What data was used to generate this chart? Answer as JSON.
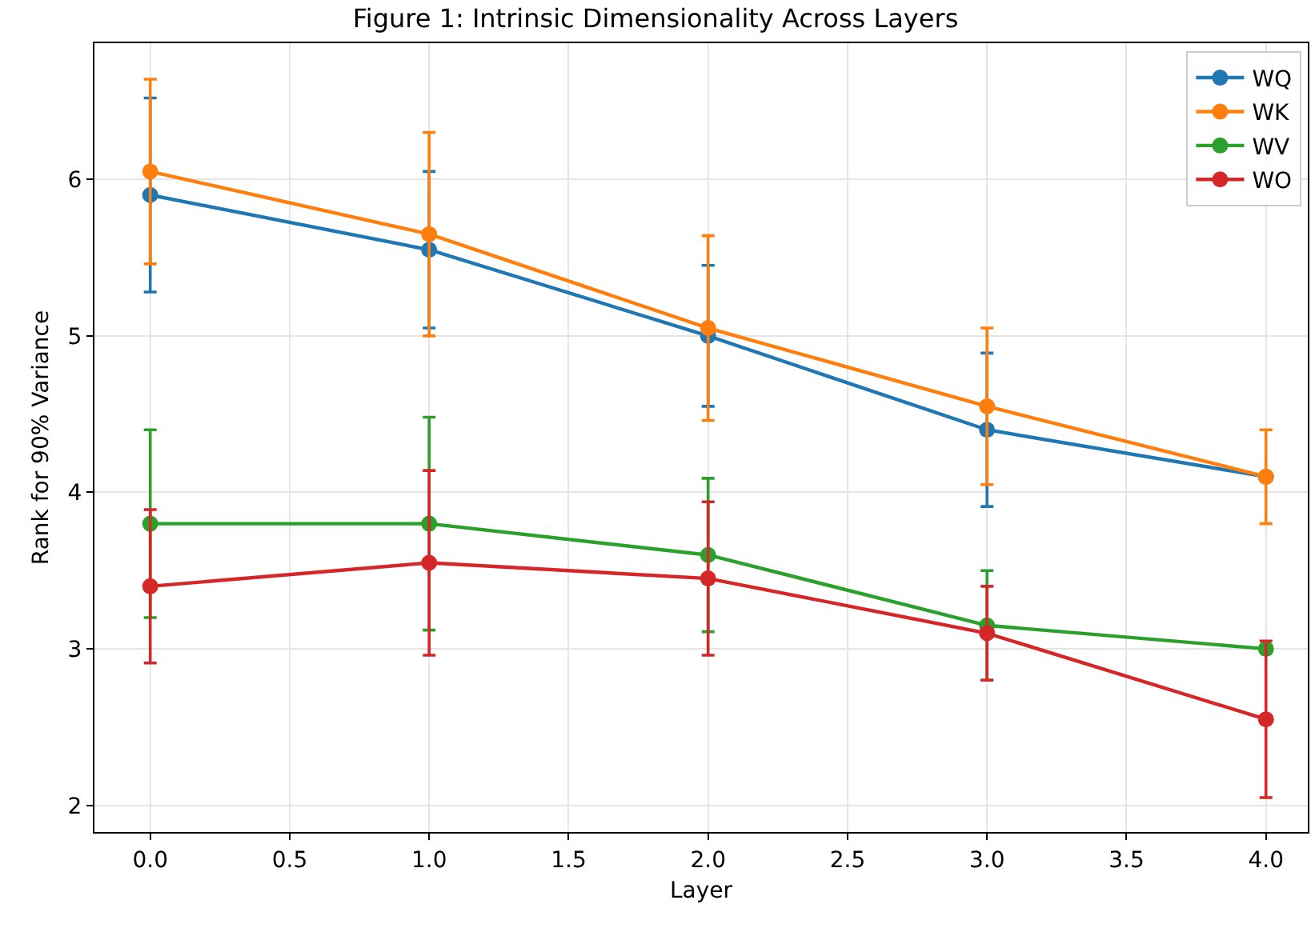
{
  "chart_data": {
    "type": "line",
    "title": "Figure 1: Intrinsic Dimensionality Across Layers",
    "xlabel": "Layer",
    "ylabel": "Rank for 90% Variance",
    "x": [
      0,
      1,
      2,
      3,
      4
    ],
    "series": [
      {
        "name": "WQ",
        "color": "#1f77b4",
        "values": [
          5.9,
          5.55,
          5.0,
          4.4,
          4.1
        ],
        "errors": [
          0.62,
          0.5,
          0.45,
          0.49,
          null
        ]
      },
      {
        "name": "WK",
        "color": "#ff7f0e",
        "values": [
          6.05,
          5.65,
          5.05,
          4.55,
          4.1
        ],
        "errors": [
          0.59,
          0.65,
          0.59,
          0.5,
          0.3
        ]
      },
      {
        "name": "WV",
        "color": "#2ca02c",
        "values": [
          3.8,
          3.8,
          3.6,
          3.15,
          3.0
        ],
        "errors": [
          0.6,
          0.68,
          0.49,
          0.35,
          null
        ]
      },
      {
        "name": "WO",
        "color": "#d62728",
        "values": [
          3.4,
          3.55,
          3.45,
          3.1,
          2.55
        ],
        "errors": [
          0.49,
          0.59,
          0.49,
          0.3,
          0.5
        ]
      }
    ],
    "xlim": [
      -0.2,
      4.15
    ],
    "xticks": [
      {
        "value": 0,
        "label": "0.0"
      },
      {
        "value": 0.5,
        "label": "0.5"
      },
      {
        "value": 1,
        "label": "1.0"
      },
      {
        "value": 1.5,
        "label": "1.5"
      },
      {
        "value": 2,
        "label": "2.0"
      },
      {
        "value": 2.5,
        "label": "2.5"
      },
      {
        "value": 3,
        "label": "3.0"
      },
      {
        "value": 3.5,
        "label": "3.5"
      },
      {
        "value": 4,
        "label": "4.0"
      }
    ],
    "ylim": [
      1.83,
      6.87
    ],
    "yticks": [
      2,
      3,
      4,
      5,
      6
    ],
    "grid": true,
    "legend": "top right",
    "marker": "circle",
    "line_style": "solid"
  }
}
